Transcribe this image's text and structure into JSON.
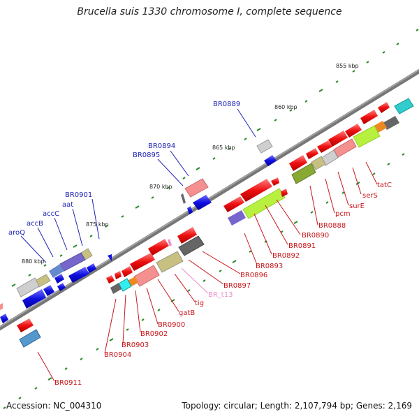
{
  "title": "Brucella suis 1330 chromosome I, complete sequence",
  "footer": {
    "accession": "Accession: NC_004310",
    "summary": "Topology: circular; Length: 2,107,794 bp; Genes: 2,169"
  },
  "scale": {
    "ticks": [
      {
        "label": "855 kbp"
      },
      {
        "label": "860 kbp"
      },
      {
        "label": "865 kbp"
      },
      {
        "label": "870 kbp"
      },
      {
        "label": "875 kbp"
      },
      {
        "label": "880 kbp"
      }
    ]
  },
  "labels_top": [
    {
      "text": "BR0889",
      "color": "#1f24b5"
    },
    {
      "text": "BR0894",
      "color": "#1f24b5"
    },
    {
      "text": "BR0895",
      "color": "#1f24b5"
    },
    {
      "text": "BR0901",
      "color": "#1f24b5"
    },
    {
      "text": "aat",
      "color": "#1f24b5"
    },
    {
      "text": "accC",
      "color": "#1f24b5"
    },
    {
      "text": "accB",
      "color": "#1f24b5"
    },
    {
      "text": "aroQ",
      "color": "#1f24b5"
    }
  ],
  "labels_bottom": [
    {
      "text": "tatC",
      "color": "#c8181c"
    },
    {
      "text": "serS",
      "color": "#c8181c"
    },
    {
      "text": "surE",
      "color": "#c8181c"
    },
    {
      "text": "pcm",
      "color": "#c8181c"
    },
    {
      "text": "BR0888",
      "color": "#c8181c"
    },
    {
      "text": "BR0890",
      "color": "#c8181c"
    },
    {
      "text": "BR0891",
      "color": "#c8181c"
    },
    {
      "text": "BR0892",
      "color": "#c8181c"
    },
    {
      "text": "BR0893",
      "color": "#c8181c"
    },
    {
      "text": "BR0896",
      "color": "#c8181c"
    },
    {
      "text": "BR0897",
      "color": "#c8181c"
    },
    {
      "text": "BR_t13",
      "color": "#e890c8"
    },
    {
      "text": "tig",
      "color": "#c8181c"
    },
    {
      "text": "gatB",
      "color": "#c8181c"
    },
    {
      "text": "BR0900",
      "color": "#c8181c"
    },
    {
      "text": "BR0902",
      "color": "#c8181c"
    },
    {
      "text": "BR0903",
      "color": "#c8181c"
    },
    {
      "text": "BR0904",
      "color": "#c8181c"
    },
    {
      "text": "BR0911",
      "color": "#c8181c"
    }
  ],
  "colors": {
    "forward": "#ee1111",
    "reverse": "#1111dd",
    "backbone": "#777777",
    "scale_dash": "#2a8a2a"
  }
}
